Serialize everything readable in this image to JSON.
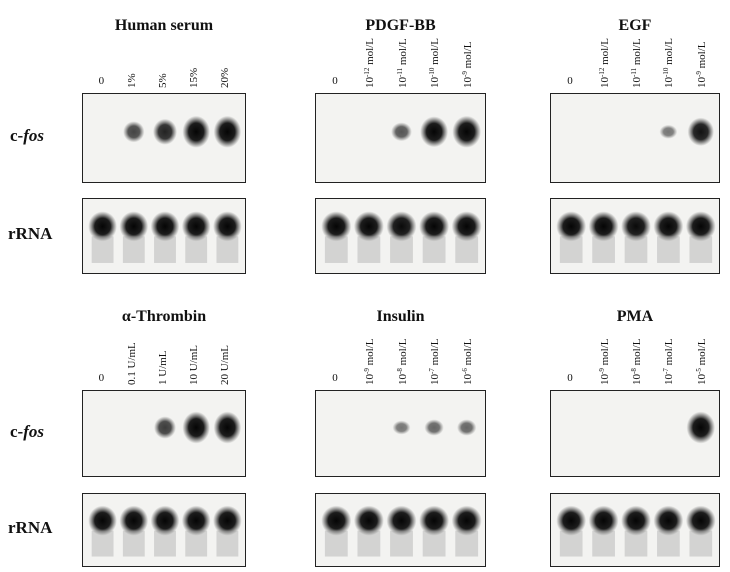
{
  "row_labels": {
    "cfos_prefix": "c-",
    "cfos_italic": "fos",
    "rrna": "rRNA"
  },
  "panels": [
    {
      "title": "Human serum",
      "lanes": [
        {
          "text": "0"
        },
        {
          "text": "1%"
        },
        {
          "text": "5%"
        },
        {
          "text": "15%"
        },
        {
          "text": "20%"
        }
      ],
      "cfos_intensity": [
        0,
        0.55,
        0.75,
        1.0,
        1.0
      ],
      "rrna_intensity": [
        1,
        1,
        1,
        1,
        1
      ]
    },
    {
      "title": "PDGF-BB",
      "lanes": [
        {
          "text": "0"
        },
        {
          "base": "10",
          "exp": "-12",
          "unit": " mol/L"
        },
        {
          "base": "10",
          "exp": "-11",
          "unit": " mol/L"
        },
        {
          "base": "10",
          "exp": "-10",
          "unit": " mol/L"
        },
        {
          "base": "10",
          "exp": "-9",
          "unit": " mol/L"
        }
      ],
      "cfos_intensity": [
        0,
        0,
        0.45,
        0.95,
        1.0
      ],
      "rrna_intensity": [
        1,
        1,
        0.9,
        1,
        0.95
      ]
    },
    {
      "title": "EGF",
      "lanes": [
        {
          "text": "0"
        },
        {
          "base": "10",
          "exp": "-12",
          "unit": " mol/L"
        },
        {
          "base": "10",
          "exp": "-11",
          "unit": " mol/L"
        },
        {
          "base": "10",
          "exp": "-10",
          "unit": " mol/L"
        },
        {
          "base": "10",
          "exp": "-9",
          "unit": " mol/L"
        }
      ],
      "cfos_intensity": [
        0,
        0,
        0,
        0.25,
        0.85
      ],
      "rrna_intensity": [
        1,
        1,
        0.9,
        0.95,
        1
      ]
    },
    {
      "title": "α-Thrombin",
      "lanes": [
        {
          "text": "0"
        },
        {
          "text": "0.1 U/mL"
        },
        {
          "text": "1 U/mL"
        },
        {
          "text": "10 U/mL"
        },
        {
          "text": "20 U/mL"
        }
      ],
      "cfos_intensity": [
        0,
        0,
        0.6,
        1.0,
        1.0
      ],
      "rrna_intensity": [
        1,
        1,
        1,
        1,
        1
      ]
    },
    {
      "title": "Insulin",
      "lanes": [
        {
          "text": "0"
        },
        {
          "base": "10",
          "exp": "-9",
          "unit": " mol/L"
        },
        {
          "base": "10",
          "exp": "-8",
          "unit": " mol/L"
        },
        {
          "base": "10",
          "exp": "-7",
          "unit": " mol/L"
        },
        {
          "base": "10",
          "exp": "-6",
          "unit": " mol/L"
        }
      ],
      "cfos_intensity": [
        0,
        0,
        0.25,
        0.35,
        0.35
      ],
      "rrna_intensity": [
        1,
        1,
        1,
        1,
        1
      ]
    },
    {
      "title": "PMA",
      "lanes": [
        {
          "text": "0"
        },
        {
          "base": "10",
          "exp": "-9",
          "unit": " mol/L"
        },
        {
          "base": "10",
          "exp": "-8",
          "unit": " mol/L"
        },
        {
          "base": "10",
          "exp": "-7",
          "unit": " mol/L"
        },
        {
          "base": "10",
          "exp": "-5",
          "unit": " mol/L"
        }
      ],
      "cfos_intensity": [
        0,
        0,
        0,
        0,
        1.0
      ],
      "rrna_intensity": [
        1,
        0.95,
        0.95,
        0.95,
        0.95
      ]
    }
  ]
}
